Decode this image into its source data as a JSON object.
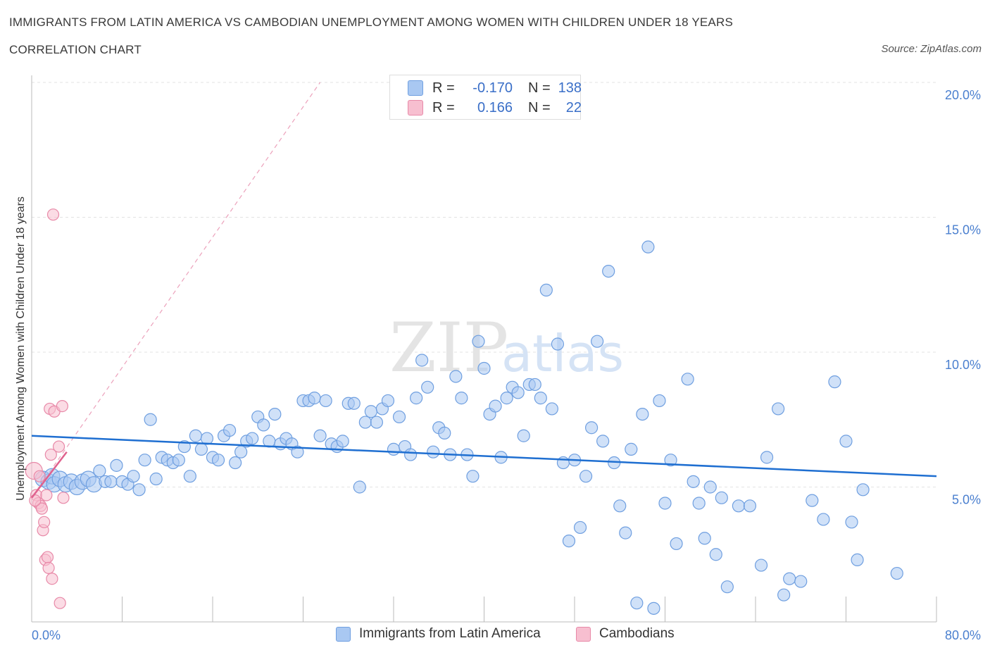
{
  "title": "IMMIGRANTS FROM LATIN AMERICA VS CAMBODIAN UNEMPLOYMENT AMONG WOMEN WITH CHILDREN UNDER 18 YEARS",
  "subtitle": "CORRELATION CHART",
  "source": "Source: ZipAtlas.com",
  "watermark": {
    "zip": "ZIP",
    "atlas": "atlas"
  },
  "colors": {
    "blue": "#a9c8f2",
    "blue_stroke": "#6f9fe0",
    "blue_line": "#1f6fd1",
    "pink": "#f7bfd0",
    "pink_stroke": "#e889a8",
    "pink_line": "#e0628e",
    "axis_text": "#4a7fcf"
  },
  "stats": {
    "rows": [
      {
        "r_label": "R =",
        "r_value": "-0.170",
        "n_label": "N =",
        "n_value": "138"
      },
      {
        "r_label": "R =",
        "r_value": "0.166",
        "n_label": "N =",
        "n_value": "22"
      }
    ]
  },
  "legend": {
    "series1": "Immigrants from Latin America",
    "series2": "Cambodians"
  },
  "chart_data": {
    "type": "scatter",
    "ylabel": "Unemployment Among Women with Children Under 18 years",
    "x_tick_labels": [
      "0.0%",
      "80.0%"
    ],
    "y_tick_labels": [
      "5.0%",
      "10.0%",
      "15.0%",
      "20.0%"
    ],
    "xlim": [
      0,
      80
    ],
    "ylim": [
      0,
      20
    ],
    "grid": true,
    "series": [
      {
        "name": "Immigrants from Latin America",
        "color": "#a9c8f2",
        "trend": {
          "x": [
            0,
            80
          ],
          "y": [
            6.9,
            5.4
          ]
        },
        "points": [
          [
            1.0,
            5.3
          ],
          [
            1.5,
            5.2
          ],
          [
            1.8,
            5.4
          ],
          [
            2.0,
            5.1
          ],
          [
            2.5,
            5.3
          ],
          [
            3.0,
            5.1
          ],
          [
            3.5,
            5.2
          ],
          [
            4.0,
            5.0
          ],
          [
            4.5,
            5.2
          ],
          [
            5.0,
            5.3
          ],
          [
            5.5,
            5.1
          ],
          [
            6.0,
            5.6
          ],
          [
            6.5,
            5.2
          ],
          [
            7.0,
            5.2
          ],
          [
            7.5,
            5.8
          ],
          [
            8.0,
            5.2
          ],
          [
            8.5,
            5.1
          ],
          [
            9.0,
            5.4
          ],
          [
            9.5,
            4.9
          ],
          [
            10.0,
            6.0
          ],
          [
            10.5,
            7.5
          ],
          [
            11.0,
            5.3
          ],
          [
            11.5,
            6.1
          ],
          [
            12.0,
            6.0
          ],
          [
            12.5,
            5.9
          ],
          [
            13.0,
            6.0
          ],
          [
            13.5,
            6.5
          ],
          [
            14.0,
            5.4
          ],
          [
            14.5,
            6.9
          ],
          [
            15.0,
            6.4
          ],
          [
            15.5,
            6.8
          ],
          [
            16.0,
            6.1
          ],
          [
            16.5,
            6.0
          ],
          [
            17.0,
            6.9
          ],
          [
            17.5,
            7.1
          ],
          [
            18.0,
            5.9
          ],
          [
            18.5,
            6.3
          ],
          [
            19.0,
            6.7
          ],
          [
            19.5,
            6.8
          ],
          [
            20.0,
            7.6
          ],
          [
            20.5,
            7.3
          ],
          [
            21.0,
            6.7
          ],
          [
            21.5,
            7.7
          ],
          [
            22.0,
            6.6
          ],
          [
            22.5,
            6.8
          ],
          [
            23.0,
            6.6
          ],
          [
            23.5,
            6.3
          ],
          [
            24.0,
            8.2
          ],
          [
            24.5,
            8.2
          ],
          [
            25.0,
            8.3
          ],
          [
            25.5,
            6.9
          ],
          [
            26.0,
            8.2
          ],
          [
            26.5,
            6.6
          ],
          [
            27.0,
            6.5
          ],
          [
            27.5,
            6.7
          ],
          [
            28.0,
            8.1
          ],
          [
            28.5,
            8.1
          ],
          [
            29.0,
            5.0
          ],
          [
            29.5,
            7.4
          ],
          [
            30.0,
            7.8
          ],
          [
            30.5,
            7.4
          ],
          [
            31.0,
            7.9
          ],
          [
            31.5,
            8.2
          ],
          [
            32.0,
            6.4
          ],
          [
            32.5,
            7.6
          ],
          [
            33.0,
            6.5
          ],
          [
            33.5,
            6.2
          ],
          [
            34.0,
            8.3
          ],
          [
            34.5,
            9.7
          ],
          [
            35.0,
            8.7
          ],
          [
            35.5,
            6.3
          ],
          [
            36.0,
            7.2
          ],
          [
            36.5,
            7.0
          ],
          [
            37.0,
            6.2
          ],
          [
            37.5,
            9.1
          ],
          [
            38.0,
            8.3
          ],
          [
            38.5,
            6.2
          ],
          [
            39.0,
            5.4
          ],
          [
            39.5,
            10.4
          ],
          [
            40.0,
            9.4
          ],
          [
            40.5,
            7.7
          ],
          [
            41.0,
            8.0
          ],
          [
            41.5,
            6.1
          ],
          [
            42.0,
            8.3
          ],
          [
            42.5,
            8.7
          ],
          [
            43.0,
            8.5
          ],
          [
            43.5,
            6.9
          ],
          [
            44.0,
            8.8
          ],
          [
            44.5,
            8.8
          ],
          [
            45.0,
            8.3
          ],
          [
            45.5,
            12.3
          ],
          [
            46.0,
            7.9
          ],
          [
            46.5,
            10.3
          ],
          [
            47.0,
            5.9
          ],
          [
            47.5,
            3.0
          ],
          [
            48.0,
            6.0
          ],
          [
            48.5,
            3.5
          ],
          [
            49.0,
            5.4
          ],
          [
            49.5,
            7.2
          ],
          [
            50.0,
            10.4
          ],
          [
            50.5,
            6.7
          ],
          [
            51.0,
            13.0
          ],
          [
            51.5,
            5.9
          ],
          [
            52.0,
            4.3
          ],
          [
            52.5,
            3.3
          ],
          [
            53.0,
            6.4
          ],
          [
            53.5,
            0.7
          ],
          [
            54.0,
            7.7
          ],
          [
            54.5,
            13.9
          ],
          [
            55.0,
            0.5
          ],
          [
            55.5,
            8.2
          ],
          [
            56.0,
            4.4
          ],
          [
            56.5,
            6.0
          ],
          [
            57.0,
            2.9
          ],
          [
            58.0,
            9.0
          ],
          [
            58.5,
            5.2
          ],
          [
            59.0,
            4.4
          ],
          [
            59.5,
            3.1
          ],
          [
            60.0,
            5.0
          ],
          [
            60.5,
            2.5
          ],
          [
            61.0,
            4.6
          ],
          [
            61.5,
            1.3
          ],
          [
            62.5,
            4.3
          ],
          [
            63.5,
            4.3
          ],
          [
            64.5,
            2.1
          ],
          [
            65.0,
            6.1
          ],
          [
            66.0,
            7.9
          ],
          [
            66.5,
            1.0
          ],
          [
            67.0,
            1.6
          ],
          [
            68.0,
            1.5
          ],
          [
            69.0,
            4.5
          ],
          [
            70.0,
            3.8
          ],
          [
            71.0,
            8.9
          ],
          [
            72.0,
            6.7
          ],
          [
            72.5,
            3.7
          ],
          [
            73.0,
            2.3
          ],
          [
            73.5,
            4.9
          ],
          [
            76.5,
            1.8
          ]
        ]
      },
      {
        "name": "Cambodians",
        "color": "#f7bfd0",
        "trend": {
          "x": [
            0,
            3.1
          ],
          "y": [
            4.6,
            6.3
          ]
        },
        "trend_extension": {
          "x": [
            0,
            25.5
          ],
          "y": [
            4.6,
            20.0
          ]
        },
        "points": [
          [
            0.2,
            5.6
          ],
          [
            0.4,
            4.7
          ],
          [
            0.6,
            4.4
          ],
          [
            0.7,
            5.4
          ],
          [
            0.8,
            4.3
          ],
          [
            0.9,
            4.2
          ],
          [
            1.0,
            3.4
          ],
          [
            1.1,
            3.7
          ],
          [
            1.2,
            2.3
          ],
          [
            1.3,
            4.7
          ],
          [
            1.4,
            2.4
          ],
          [
            1.5,
            2.0
          ],
          [
            1.6,
            7.9
          ],
          [
            1.7,
            6.2
          ],
          [
            1.8,
            1.6
          ],
          [
            1.9,
            15.1
          ],
          [
            2.0,
            7.8
          ],
          [
            2.4,
            6.5
          ],
          [
            2.5,
            0.7
          ],
          [
            2.7,
            8.0
          ],
          [
            2.8,
            4.6
          ],
          [
            0.3,
            4.5
          ]
        ]
      }
    ]
  }
}
